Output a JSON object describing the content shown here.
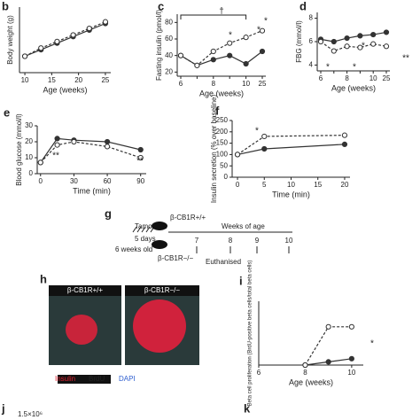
{
  "chart_data": [
    {
      "type": "line",
      "label": "b",
      "x_label": "Age (weeks)",
      "y_label": "Body weight (g)",
      "x": [
        10,
        13,
        16,
        19,
        22,
        25
      ],
      "xlim": [
        9,
        26
      ],
      "xticks": [
        10,
        15,
        20,
        25
      ],
      "ylim": [
        20,
        40
      ],
      "series": [
        {
          "name": "β-CB1R+/+",
          "color": "#333333",
          "style": "solid",
          "marker": "filled",
          "values": [
            25,
            27,
            29,
            31,
            33,
            35
          ]
        },
        {
          "name": "β-CB1R−/−",
          "color": "#333333",
          "style": "dashed",
          "marker": "open",
          "values": [
            25,
            27.5,
            29.5,
            31.5,
            33.5,
            35.5
          ]
        }
      ]
    },
    {
      "type": "line",
      "label": "c",
      "x_label": "Age (weeks)",
      "y_label": "Fasting insulin (pmol/l)",
      "categories": [
        "6",
        null,
        "8",
        null,
        "10",
        "25"
      ],
      "ylim": [
        15,
        90
      ],
      "yticks": [
        20,
        40,
        60,
        80
      ],
      "annotations": [
        "†",
        "*",
        "*",
        "*"
      ],
      "series": [
        {
          "name": "β-CB1R+/+",
          "color": "#333333",
          "style": "solid",
          "marker": "filled",
          "values": [
            40,
            28,
            35,
            40,
            30,
            45
          ]
        },
        {
          "name": "β-CB1R−/−",
          "color": "#333333",
          "style": "dashed",
          "marker": "open",
          "values": [
            40,
            28,
            45,
            55,
            62,
            70
          ]
        }
      ]
    },
    {
      "type": "line",
      "label": "d",
      "x_label": "Age (weeks)",
      "y_label": "FBG (mmol/l)",
      "categories": [
        "6",
        null,
        "8",
        null,
        "10",
        "25"
      ],
      "ylim": [
        3.5,
        8.5
      ],
      "yticks": [
        4,
        6,
        8
      ],
      "annotations": [
        "*",
        "*",
        "*",
        "**"
      ],
      "series": [
        {
          "name": "β-CB1R+/+",
          "color": "#333333",
          "style": "solid",
          "marker": "filled",
          "values": [
            6.2,
            6.0,
            6.3,
            6.5,
            6.6,
            6.8
          ]
        },
        {
          "name": "β-CB1R−/−",
          "color": "#333333",
          "style": "dashed",
          "marker": "open",
          "values": [
            6.0,
            5.2,
            5.6,
            5.5,
            5.8,
            5.6
          ]
        }
      ]
    },
    {
      "type": "line",
      "label": "e",
      "x_label": "Time (min)",
      "y_label": "Blood glucose (mmol/l)",
      "x": [
        0,
        15,
        30,
        60,
        90
      ],
      "xlim": [
        -3,
        95
      ],
      "xticks": [
        0,
        30,
        60,
        90
      ],
      "ylim": [
        0,
        30
      ],
      "yticks": [
        0,
        10,
        20,
        30
      ],
      "annotations": [
        "**",
        "**"
      ],
      "series": [
        {
          "name": "β-CB1R+/+",
          "color": "#333333",
          "style": "solid",
          "marker": "filled",
          "values": [
            7,
            22,
            21,
            20,
            15
          ]
        },
        {
          "name": "β-CB1R−/−",
          "color": "#333333",
          "style": "dashed",
          "marker": "open",
          "values": [
            7,
            18,
            20,
            17,
            10
          ]
        }
      ]
    },
    {
      "type": "line",
      "label": "f",
      "x_label": "Time (min)",
      "y_label": "Insulin secretion (% over baseline)",
      "x": [
        0,
        5,
        20
      ],
      "xlim": [
        -1,
        21
      ],
      "xticks": [
        0,
        5,
        10,
        15,
        20
      ],
      "ylim": [
        0,
        250
      ],
      "yticks": [
        0,
        50,
        100,
        150,
        200,
        250
      ],
      "annotations": [
        "*"
      ],
      "series": [
        {
          "name": "β-CB1R+/+",
          "color": "#333333",
          "style": "solid",
          "marker": "filled",
          "values": [
            100,
            125,
            145
          ]
        },
        {
          "name": "β-CB1R−/−",
          "color": "#333333",
          "style": "dashed",
          "marker": "open",
          "values": [
            100,
            180,
            185
          ]
        }
      ]
    },
    {
      "type": "line",
      "label": "i",
      "x_label": "Age (weeks)",
      "y_label": "Beta cell proliferation (BrdU-positive beta cells/total beta cells)",
      "x": [
        8,
        9,
        10
      ],
      "xlim": [
        6,
        10.5
      ],
      "xticks": [
        6,
        8,
        10
      ],
      "ylim": [
        0,
        10
      ],
      "annotations": [
        "*"
      ],
      "series": [
        {
          "name": "β-CB1R+/+",
          "color": "#333333",
          "style": "solid",
          "marker": "filled",
          "values": [
            0,
            0.5,
            1
          ]
        },
        {
          "name": "β-CB1R−/−",
          "color": "#333333",
          "style": "dashed",
          "marker": "open",
          "values": [
            0,
            6,
            6
          ]
        }
      ]
    }
  ],
  "diagram_g": {
    "label": "g",
    "treatment": "Tamoxifen",
    "duration": "5 days",
    "start": "6 weeks old",
    "wild_type": "β-CB1R+/+",
    "knockout": "β-CB1R−/−",
    "axis_title": "Weeks of age",
    "weeks": [
      "7",
      "8",
      "9",
      "10"
    ],
    "end": "Euthanised"
  },
  "image_h": {
    "label": "h",
    "left_title": "β-CB1R+/+",
    "right_title": "β-CB1R−/−",
    "stains": [
      "Insulin",
      "BrdU",
      "DAPI"
    ]
  },
  "panel_j": {
    "label": "j",
    "value_text": "1.5×10⁶"
  },
  "panel_k": {
    "label": "k"
  }
}
